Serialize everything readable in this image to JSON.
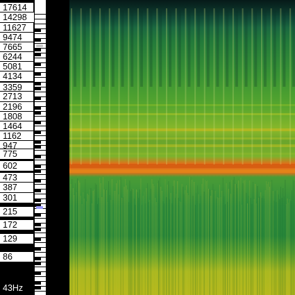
{
  "frequency_axis": {
    "unit": "Hz",
    "labels": [
      "17614",
      "14298",
      "11627",
      "9474",
      "7665",
      "6244",
      "5081",
      "4134",
      "3359",
      "2713",
      "2196",
      "1808",
      "1464",
      "1162",
      "947",
      "775",
      "602",
      "473",
      "387",
      "301",
      "215",
      "172",
      "129",
      "86",
      "43Hz"
    ]
  },
  "piano_keyboard": {
    "highlighted_keys": [
      {
        "color": "#9c9cff"
      },
      {
        "color": "#c8c8c8"
      }
    ]
  },
  "spectrogram": {
    "type": "heatmap",
    "colormap": [
      "#0a2a2a",
      "#12604a",
      "#2f8f3a",
      "#6fb52a",
      "#c8c41c",
      "#e07a10",
      "#d04a08"
    ],
    "dominant_band_color": "#e0701a"
  }
}
